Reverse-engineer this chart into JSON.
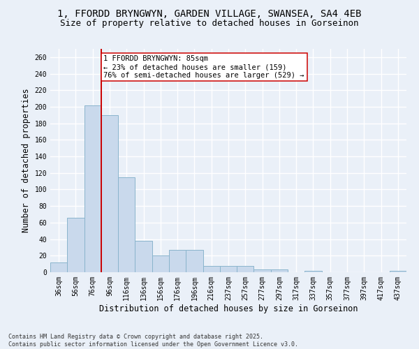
{
  "title_line1": "1, FFORDD BRYNGWYN, GARDEN VILLAGE, SWANSEA, SA4 4EB",
  "title_line2": "Size of property relative to detached houses in Gorseinon",
  "xlabel": "Distribution of detached houses by size in Gorseinon",
  "ylabel": "Number of detached properties",
  "footer_line1": "Contains HM Land Registry data © Crown copyright and database right 2025.",
  "footer_line2": "Contains public sector information licensed under the Open Government Licence v3.0.",
  "categories": [
    "36sqm",
    "56sqm",
    "76sqm",
    "96sqm",
    "116sqm",
    "136sqm",
    "156sqm",
    "176sqm",
    "196sqm",
    "216sqm",
    "237sqm",
    "257sqm",
    "277sqm",
    "297sqm",
    "317sqm",
    "337sqm",
    "357sqm",
    "377sqm",
    "397sqm",
    "417sqm",
    "437sqm"
  ],
  "values": [
    12,
    66,
    202,
    190,
    115,
    38,
    20,
    27,
    27,
    8,
    8,
    8,
    3,
    3,
    0,
    2,
    0,
    0,
    0,
    0,
    2
  ],
  "bar_color": "#c9d9ec",
  "bar_edge_color": "#8ab4cc",
  "bar_linewidth": 0.7,
  "vline_x_index": 2,
  "vline_color": "#cc0000",
  "vline_linewidth": 1.4,
  "annotation_text": "1 FFORDD BRYNGWYN: 85sqm\n← 23% of detached houses are smaller (159)\n76% of semi-detached houses are larger (529) →",
  "annotation_box_color": "#ffffff",
  "annotation_box_edge": "#cc0000",
  "ylim": [
    0,
    270
  ],
  "yticks": [
    0,
    20,
    40,
    60,
    80,
    100,
    120,
    140,
    160,
    180,
    200,
    220,
    240,
    260
  ],
  "bg_color": "#eaf0f8",
  "plot_bg_color": "#eaf0f8",
  "grid_color": "#ffffff",
  "title_fontsize": 10,
  "subtitle_fontsize": 9,
  "axis_label_fontsize": 8.5,
  "tick_fontsize": 7,
  "annotation_fontsize": 7.5,
  "footer_fontsize": 6
}
